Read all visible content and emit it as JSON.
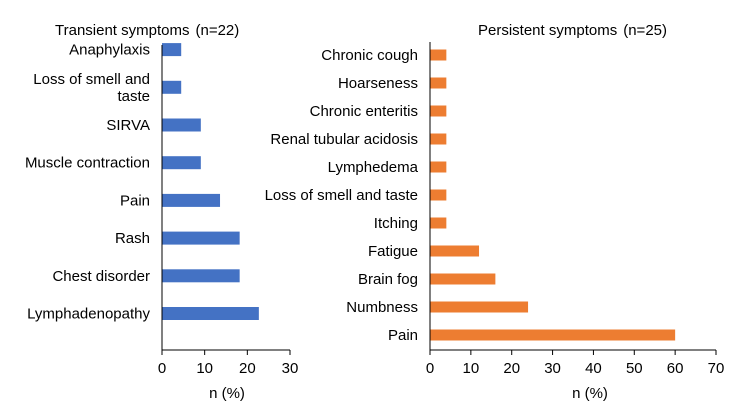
{
  "chart_data": [
    {
      "type": "bar",
      "orientation": "horizontal",
      "title": "Transient symptoms",
      "subtitle": "(n=22)",
      "xlabel": "n (%)",
      "ylabel": "",
      "xlim": [
        0,
        30
      ],
      "xticks": [
        0,
        10,
        20,
        30
      ],
      "color": "#4472C4",
      "grid": false,
      "legend": "none",
      "categories": [
        "Lymphadenopathy",
        "Chest disorder",
        "Rash",
        "Pain",
        "Muscle contraction",
        "SIRVA",
        "Loss of smell and taste",
        "Anaphylaxis"
      ],
      "category_lines": [
        [
          "Lymphadenopathy"
        ],
        [
          "Chest disorder"
        ],
        [
          "Rash"
        ],
        [
          "Pain"
        ],
        [
          "Muscle contraction"
        ],
        [
          "SIRVA"
        ],
        [
          "Loss of smell and",
          "taste"
        ],
        [
          "Anaphylaxis"
        ]
      ],
      "values": [
        22.7,
        18.2,
        18.2,
        13.6,
        9.1,
        9.1,
        4.5,
        4.5
      ]
    },
    {
      "type": "bar",
      "orientation": "horizontal",
      "title": "Persistent symptoms",
      "subtitle": "(n=25)",
      "xlabel": "n (%)",
      "ylabel": "",
      "xlim": [
        0,
        70
      ],
      "xticks": [
        0,
        10,
        20,
        30,
        40,
        50,
        60,
        70
      ],
      "color": "#ED7D31",
      "grid": false,
      "legend": "none",
      "categories": [
        "Pain",
        "Numbness",
        "Brain fog",
        "Fatigue",
        "Itching",
        "Loss of smell and taste",
        "Lymphedema",
        "Renal tubular acidosis",
        "Chronic enteritis",
        "Hoarseness",
        "Chronic cough"
      ],
      "category_lines": [
        [
          "Pain"
        ],
        [
          "Numbness"
        ],
        [
          "Brain fog"
        ],
        [
          "Fatigue"
        ],
        [
          "Itching"
        ],
        [
          "Loss of smell and taste"
        ],
        [
          "Lymphedema"
        ],
        [
          "Renal tubular acidosis"
        ],
        [
          "Chronic enteritis"
        ],
        [
          "Hoarseness"
        ],
        [
          "Chronic cough"
        ]
      ],
      "values": [
        60,
        24,
        16,
        12,
        4,
        4,
        4,
        4,
        4,
        4,
        4
      ]
    }
  ]
}
